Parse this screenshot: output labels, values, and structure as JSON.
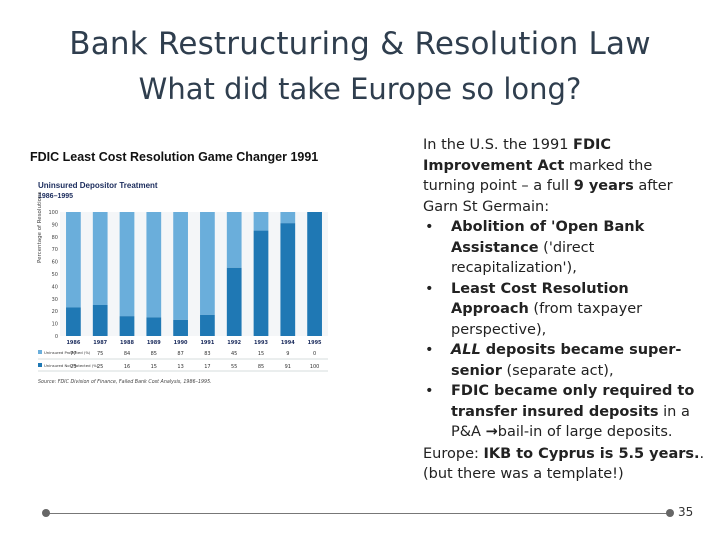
{
  "slide": {
    "title_line1": "Bank Restructuring & Resolution Law",
    "title_line2": "What did take Europe so long?",
    "left_caption": "FDIC Least Cost Resolution Game Changer 1991",
    "page_number": "35"
  },
  "chart_image": {
    "title": "Uninsured Depositor Treatment",
    "subtitle": "1986–1995",
    "ylabel": "Percentage of Resolutions",
    "yticks": [
      "0",
      "10",
      "20",
      "30",
      "40",
      "50",
      "60",
      "70",
      "80",
      "90",
      "100"
    ],
    "row1_label": "Uninsured Protected (%)",
    "row2_label": "Uninsured Not Protected (%)",
    "source": "Source: FDIC Division of Finance, Failed Bank Cost Analysis, 1986–1995.",
    "colors": {
      "protected": "#6aaedb",
      "not_protected": "#1f78b4"
    }
  },
  "chart_data": {
    "type": "bar",
    "categories": [
      "1986",
      "1987",
      "1988",
      "1989",
      "1990",
      "1991",
      "1992",
      "1993",
      "1994",
      "1995"
    ],
    "series": [
      {
        "name": "Uninsured Protected (%)",
        "values": [
          77,
          75,
          84,
          85,
          87,
          83,
          45,
          15,
          9,
          0
        ]
      },
      {
        "name": "Uninsured Not Protected (%)",
        "values": [
          23,
          25,
          16,
          15,
          13,
          17,
          55,
          85,
          91,
          100
        ]
      }
    ],
    "ylim": [
      0,
      100
    ],
    "title": "Uninsured Depositor Treatment",
    "subtitle": "1986–1995",
    "ylabel": "Percentage of Resolutions"
  },
  "right_text": {
    "intro_1": "In the U.S. the 1991 ",
    "intro_b1": "FDIC Improvement Act",
    "intro_2": " marked the turning point – a full ",
    "intro_b2": "9 years",
    "intro_3": " after Garn St Germain:",
    "bullet_char": "•",
    "b1_bold": "Abolition of 'Open Bank Assistance",
    "b1_rest": " ('direct recapitalization'),",
    "b2_bold": "Least Cost Resolution Approach",
    "b2_rest": " (from taxpayer perspective),",
    "b3_bi": "ALL",
    "b3_bold": " deposits became super-senior",
    "b3_rest": " (separate act),",
    "b4_bold": "FDIC became only required to transfer insured deposits",
    "b4_mid": " in a P&A ",
    "b4_arrow": "→",
    "b4_end": "bail-in of large deposits."
  },
  "europe": {
    "label": "Europe: ",
    "bold": "IKB to Cyprus is 5.5 years.",
    "rest": ".",
    "line2": "(but there was a template!)"
  }
}
